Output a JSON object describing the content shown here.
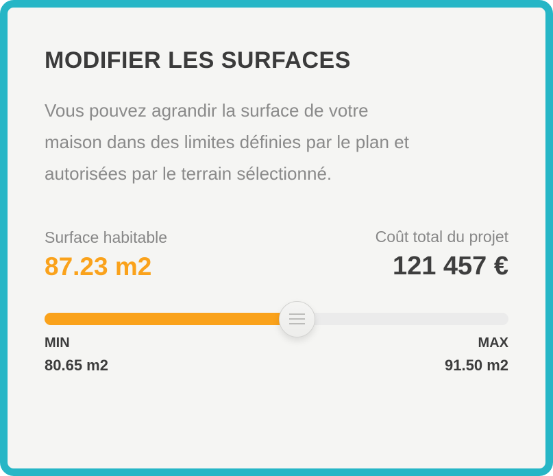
{
  "card": {
    "title": "MODIFIER LES SURFACES",
    "description": "Vous pouvez agrandir la surface de votre maison dans des limites définies par le plan et autorisées par le terrain sélectionné.",
    "description_lines": [
      "Vous pouvez agrandir la surface de votre",
      "maison dans des limites définies par le plan et",
      "autorisées par le terrain sélectionné."
    ],
    "surface": {
      "label": "Surface habitable",
      "value": "87.23 m2"
    },
    "cost": {
      "label": "Coût total du projet",
      "value": "121 457 €"
    },
    "slider": {
      "min_label": "MIN",
      "min_value": "80.65 m2",
      "max_label": "MAX",
      "max_value": "91.50 m2",
      "current_value": "87.23 m2",
      "fill_width": "54.5%",
      "handle_left": "54.5%"
    },
    "colors": {
      "border_teal": "#26b6c6",
      "accent_orange": "#faa21b",
      "track_gray": "#ebebeb",
      "card_background": "#f5f5f3",
      "title_text": "#3b3b3b",
      "muted_text": "#8a8a8a"
    }
  }
}
